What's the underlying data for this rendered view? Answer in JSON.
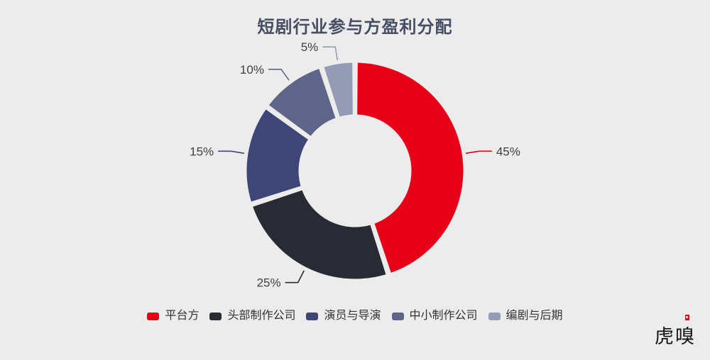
{
  "colors": {
    "background": "#ececec",
    "title_text": "#464e63",
    "pct_label_text": "#404040",
    "legend_text": "#333333",
    "brand_red": "#e60018"
  },
  "watermark": {
    "text": "虎嗅"
  },
  "chart_data": {
    "type": "pie",
    "subtype": "donut",
    "title": "短剧行业参与方盈利分配",
    "start_angle": "12-oclock",
    "direction": "clockwise",
    "legend_position": "bottom",
    "unit": "%",
    "categories": [
      "平台方",
      "头部制作公司",
      "演员与导演",
      "中小制作公司",
      "编剧与后期"
    ],
    "values": [
      45,
      25,
      15,
      10,
      5
    ],
    "slices": [
      {
        "key": "platform",
        "label": "平台方",
        "value": 45,
        "pct_label": "45%",
        "color": "#e60018"
      },
      {
        "key": "top-producers",
        "label": "头部制作公司",
        "value": 25,
        "pct_label": "25%",
        "color": "#282b33"
      },
      {
        "key": "actors-directors",
        "label": "演员与导演",
        "value": 15,
        "pct_label": "15%",
        "color": "#3e4677"
      },
      {
        "key": "small-producers",
        "label": "中小制作公司",
        "value": 10,
        "pct_label": "10%",
        "color": "#5f6589"
      },
      {
        "key": "writers-post",
        "label": "编剧与后期",
        "value": 5,
        "pct_label": "5%",
        "color": "#949bb4"
      }
    ]
  }
}
